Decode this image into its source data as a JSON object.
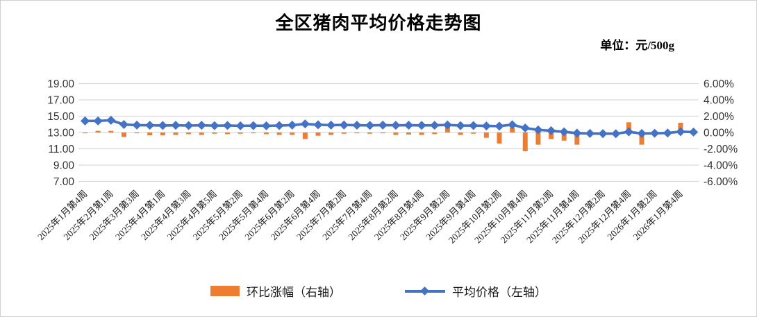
{
  "title": "全区猪肉平均价格走势图",
  "unit_label": "单位：元/500g",
  "colors": {
    "bar": "#ED7D31",
    "line": "#4472C4",
    "grid": "#D9D9D9",
    "axis_text": "#333333",
    "title_text": "#000000"
  },
  "legend": [
    {
      "label": "环比涨幅（右轴）",
      "type": "bar",
      "color": "#ED7D31"
    },
    {
      "label": "平均价格（左轴）",
      "type": "line",
      "color": "#4472C4"
    }
  ],
  "left_axis": {
    "ticks": [
      "19.00",
      "17.00",
      "15.00",
      "13.00",
      "11.00",
      "9.00",
      "7.00"
    ]
  },
  "right_axis": {
    "ticks": [
      "6.00%",
      "4.00%",
      "2.00%",
      "0.00%",
      "-2.00%",
      "-4.00%",
      "-6.00%"
    ]
  },
  "chart_data": {
    "type": "bar+line combo, dual axis",
    "title": "全区猪肉平均价格走势图",
    "unit": "元/500g",
    "grid": "horizontal gridlines on",
    "legend_position": "bottom",
    "left_axis_range": [
      7,
      19
    ],
    "right_axis_range": [
      -6,
      6
    ],
    "x_labels_visible": [
      "2025年1月第4周",
      "2025年2月第1周",
      "2025年3月第3周",
      "2025年4月第1周",
      "2025年4月第3周",
      "2025年4月第5周",
      "2025年5月第2周",
      "2025年5月第4周",
      "2025年6月第2周",
      "2025年6月第4周",
      "2025年7月第2周",
      "2025年7月第4周",
      "2025年8月第2周",
      "2025年8月第4周",
      "2025年9月第2周",
      "2025年9月第4周",
      "2025年10月第2周",
      "2025年10月第4周",
      "2025年11月第2周",
      "2025年11月第4周",
      "2025年12月第2周",
      "2025年12月第4周",
      "2026年1月第2周",
      "2026年1月第4周"
    ],
    "label_every_n_points": 2,
    "series": [
      {
        "name": "环比涨幅（右轴）",
        "type": "bar",
        "axis": "right",
        "unit": "%",
        "values": [
          -0.1,
          0.2,
          0.2,
          -0.55,
          -0.1,
          -0.35,
          -0.35,
          -0.3,
          -0.2,
          -0.3,
          -0.15,
          -0.2,
          -0.15,
          -0.1,
          -0.2,
          -0.3,
          -0.3,
          -0.8,
          -0.4,
          -0.3,
          -0.15,
          -0.1,
          -0.15,
          -0.1,
          -0.3,
          -0.25,
          -0.3,
          -0.2,
          0.75,
          -0.3,
          -0.15,
          -0.65,
          -1.35,
          0.6,
          -2.3,
          -1.5,
          -0.8,
          -1.0,
          -1.5,
          -0.3,
          -0.2,
          -0.3,
          1.25,
          -1.5,
          -0.2,
          -0.15,
          1.2,
          0.05
        ]
      },
      {
        "name": "平均价格（左轴）",
        "type": "line",
        "axis": "left",
        "unit": "元/500g",
        "values": [
          14.42,
          14.42,
          14.5,
          13.98,
          13.9,
          13.88,
          13.86,
          13.88,
          13.85,
          13.88,
          13.84,
          13.86,
          13.82,
          13.84,
          13.82,
          13.85,
          13.9,
          14.05,
          13.95,
          13.9,
          13.92,
          13.89,
          13.87,
          13.9,
          13.88,
          13.89,
          13.87,
          13.88,
          13.93,
          13.84,
          13.85,
          13.8,
          13.78,
          13.95,
          13.55,
          13.32,
          13.22,
          13.08,
          12.92,
          12.88,
          12.86,
          12.85,
          13.08,
          12.88,
          12.9,
          12.94,
          13.1,
          13.05
        ]
      }
    ]
  }
}
